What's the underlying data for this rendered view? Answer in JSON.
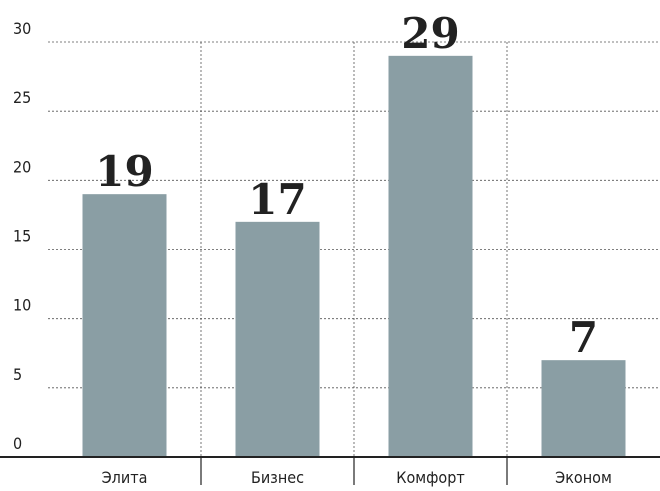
{
  "chart_data": {
    "type": "bar",
    "categories": [
      "Элита",
      "Бизнес",
      "Комфорт",
      "Эконом"
    ],
    "values": [
      19,
      17,
      29,
      7
    ],
    "color": "#8a9ea4",
    "ylim": [
      0,
      30
    ],
    "yticks": [
      0,
      5,
      10,
      15,
      20,
      25,
      30
    ],
    "grid": true
  }
}
